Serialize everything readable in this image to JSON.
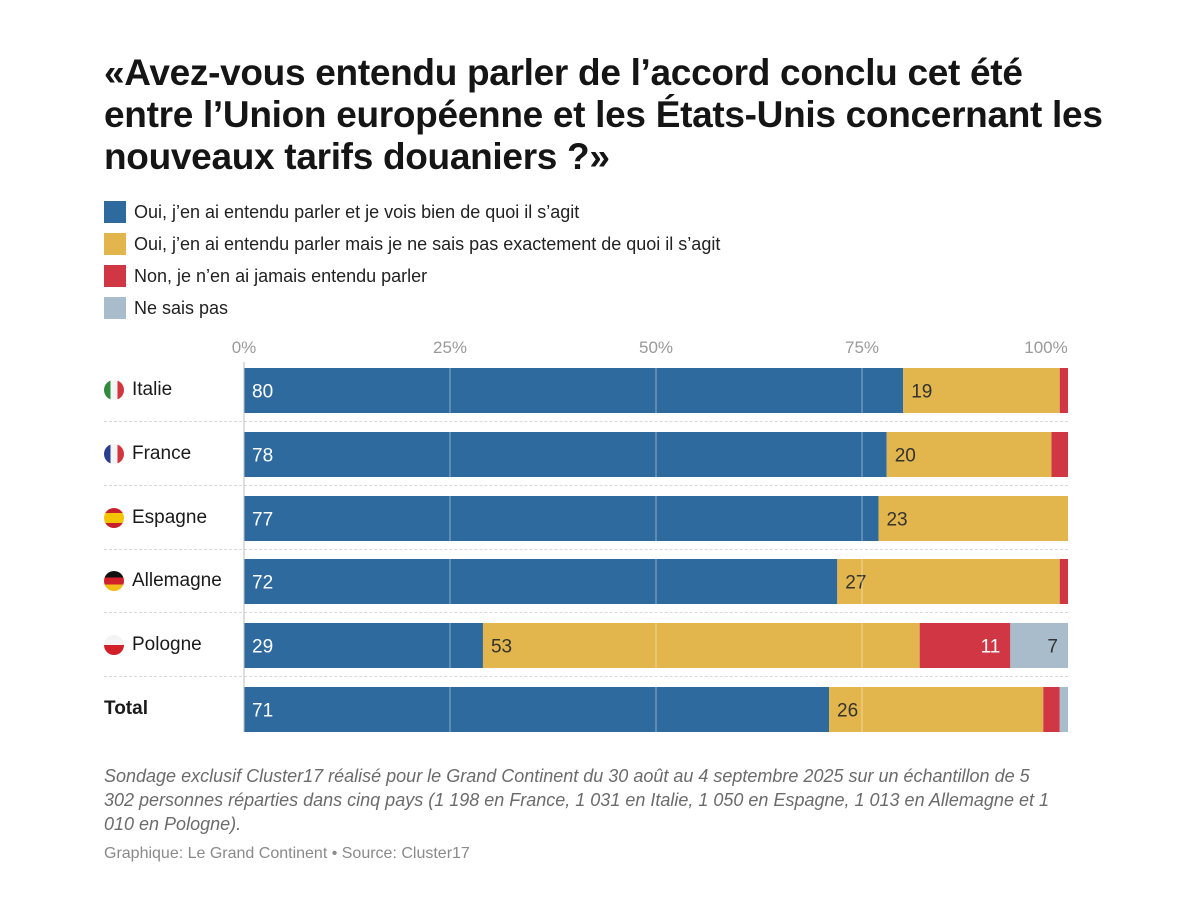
{
  "colors": {
    "oui_bien": "#2e6a9e",
    "oui_pas_exactement": "#e2b64c",
    "non": "#d03643",
    "ne_sais_pas": "#a9bccb"
  },
  "chart_data": {
    "type": "bar",
    "orientation": "horizontal",
    "stacked": true,
    "title": "«Avez-vous entendu parler de l’accord conclu cet été entre l’Union européenne et les États-Unis concernant les nouveaux tarifs douaniers ?»",
    "xlabel": "",
    "ylabel": "",
    "xlim": [
      0,
      100
    ],
    "tick_values": [
      0,
      25,
      50,
      75,
      100
    ],
    "tick_labels": [
      "0%",
      "25%",
      "50%",
      "75%",
      "100%"
    ],
    "grid": true,
    "legend_position": "top-left",
    "categories": [
      "Italie",
      "France",
      "Espagne",
      "Allemagne",
      "Pologne",
      "Total"
    ],
    "flags": [
      "it",
      "fr",
      "es",
      "de",
      "pl",
      ""
    ],
    "series": [
      {
        "name": "Oui, j’en ai entendu parler et je vois bien de quoi il s’agit",
        "color_key": "oui_bien",
        "values": [
          80,
          78,
          77,
          72,
          29,
          71
        ],
        "labels": [
          "80",
          "78",
          "77",
          "72",
          "29",
          "71"
        ]
      },
      {
        "name": "Oui, j’en ai entendu parler mais je ne sais pas exactement de quoi il s’agit",
        "color_key": "oui_pas_exactement",
        "values": [
          19,
          20,
          23,
          27,
          53,
          26
        ],
        "labels": [
          "19",
          "20",
          "23",
          "27",
          "53",
          "26"
        ]
      },
      {
        "name": "Non, je n’en ai jamais entendu parler",
        "color_key": "non",
        "values": [
          1,
          2,
          0,
          1,
          11,
          2
        ],
        "labels": [
          "",
          "",
          "",
          "",
          "11",
          ""
        ]
      },
      {
        "name": "Ne sais pas",
        "color_key": "ne_sais_pas",
        "values": [
          0,
          0,
          0,
          0,
          7,
          1
        ],
        "labels": [
          "",
          "",
          "",
          "",
          "7",
          ""
        ]
      }
    ]
  },
  "note": "Sondage exclusif Cluster17 réalisé pour le Grand Continent du 30 août au 4 septembre 2025 sur un échantillon de 5 302 personnes réparties dans cinq pays (1 198 en France, 1 031 en Italie, 1 050 en Espagne, 1 013 en Allemagne et 1 010 en Pologne).",
  "credit": "Graphique: Le Grand Continent • Source: Cluster17"
}
